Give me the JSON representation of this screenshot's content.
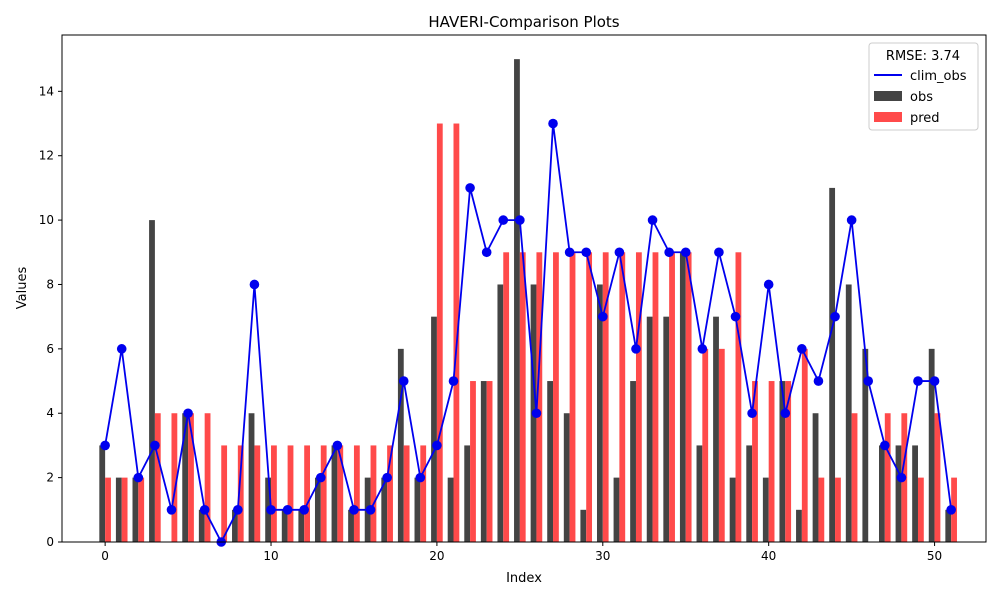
{
  "chart_data": {
    "type": "bar",
    "title": "HAVERI-Comparison Plots",
    "xlabel": "Index",
    "ylabel": "Values",
    "xlim": [
      -2.6,
      53.1
    ],
    "ylim": [
      0,
      15.75
    ],
    "xticks": [
      0,
      10,
      20,
      30,
      40,
      50
    ],
    "yticks": [
      0,
      2,
      4,
      6,
      8,
      10,
      12,
      14
    ],
    "grid": false,
    "legend": {
      "title": "RMSE: 3.74",
      "placement": "top-right",
      "entries": [
        "clim_obs",
        "obs",
        "pred"
      ]
    },
    "x": [
      0,
      1,
      2,
      3,
      4,
      5,
      6,
      7,
      8,
      9,
      10,
      11,
      12,
      13,
      14,
      15,
      16,
      17,
      18,
      19,
      20,
      21,
      22,
      23,
      24,
      25,
      26,
      27,
      28,
      29,
      30,
      31,
      32,
      33,
      34,
      35,
      36,
      37,
      38,
      39,
      40,
      41,
      42,
      43,
      44,
      45,
      46,
      47,
      48,
      49,
      50,
      51
    ],
    "series": [
      {
        "name": "obs",
        "kind": "bar",
        "color": "#444444",
        "values": [
          3,
          2,
          2,
          10,
          0,
          4,
          1,
          0,
          1,
          4,
          2,
          1,
          1,
          2,
          3,
          1,
          2,
          2,
          6,
          2,
          7,
          2,
          3,
          5,
          8,
          15,
          8,
          5,
          4,
          1,
          8,
          2,
          5,
          7,
          7,
          9,
          3,
          7,
          2,
          3,
          2,
          5,
          1,
          4,
          11,
          8,
          6,
          3,
          3,
          3,
          6,
          1
        ]
      },
      {
        "name": "pred",
        "kind": "bar",
        "color": "#ff4a4a",
        "values": [
          2,
          2,
          2,
          4,
          4,
          4,
          4,
          3,
          3,
          3,
          3,
          3,
          3,
          3,
          3,
          3,
          3,
          3,
          3,
          3,
          13,
          13,
          5,
          5,
          9,
          9,
          9,
          9,
          9,
          9,
          9,
          9,
          9,
          9,
          9,
          9,
          6,
          6,
          9,
          5,
          5,
          5,
          6,
          2,
          2,
          4,
          0,
          4,
          4,
          2,
          4,
          2
        ]
      },
      {
        "name": "clim_obs",
        "kind": "line",
        "color": "#0000ee",
        "values": [
          3,
          6,
          2,
          3,
          1,
          4,
          1,
          0,
          1,
          8,
          1,
          1,
          1,
          2,
          3,
          1,
          1,
          2,
          5,
          2,
          3,
          5,
          11,
          9,
          10,
          10,
          4,
          13,
          9,
          9,
          7,
          9,
          6,
          10,
          9,
          9,
          6,
          9,
          7,
          4,
          8,
          4,
          6,
          5,
          7,
          10,
          5,
          3,
          2,
          5,
          5,
          1
        ]
      }
    ]
  }
}
